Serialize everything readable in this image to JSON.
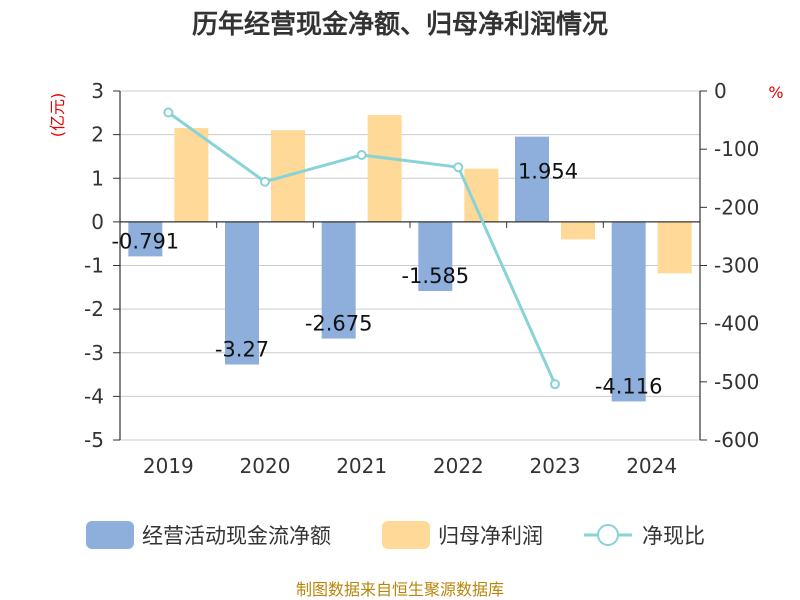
{
  "chart_data": {
    "type": "bar",
    "title": "历年经营现金净额、归母净利润情况",
    "categories": [
      "2019",
      "2020",
      "2021",
      "2022",
      "2023",
      "2024"
    ],
    "y_left": {
      "unit": "(亿元)",
      "min": -5,
      "max": 3,
      "ticks": [
        3,
        2,
        1,
        0,
        -1,
        -2,
        -3,
        -4,
        -5
      ]
    },
    "y_right": {
      "unit": "%",
      "min": -600,
      "max": 0,
      "ticks": [
        0,
        -100,
        -200,
        -300,
        -400,
        -500,
        -600
      ]
    },
    "series": [
      {
        "name": "经营活动现金流净额",
        "type": "bar",
        "axis": "left",
        "color": "#8eafdc",
        "values": [
          -0.791,
          -3.27,
          -2.675,
          -1.585,
          1.954,
          -4.116
        ],
        "labels": [
          "-0.791",
          "-3.27",
          "-2.675",
          "-1.585",
          "1.954",
          "-4.116"
        ]
      },
      {
        "name": "归母净利润",
        "type": "bar",
        "axis": "left",
        "color": "#fed997",
        "values": [
          2.15,
          2.1,
          2.45,
          1.22,
          -0.4,
          -1.18
        ]
      },
      {
        "name": "净现比",
        "type": "line",
        "axis": "right",
        "color": "#88d3d8",
        "values": [
          -37,
          -156,
          -110,
          -131,
          -504,
          null
        ]
      }
    ],
    "grid": true,
    "legend_position": "bottom",
    "source": "制图数据来自恒生聚源数据库"
  }
}
